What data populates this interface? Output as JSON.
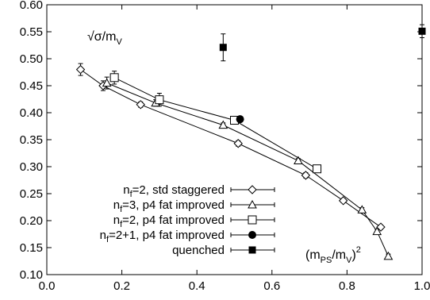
{
  "chart_data": {
    "type": "scatter",
    "title": "",
    "xlabel": "",
    "ylabel": "",
    "xlim": [
      0.0,
      1.0
    ],
    "ylim": [
      0.1,
      0.6
    ],
    "x_ticks": [
      "0.0",
      "0.2",
      "0.4",
      "0.6",
      "0.8",
      "1.0"
    ],
    "y_ticks": [
      "0.10",
      "0.15",
      "0.20",
      "0.25",
      "0.30",
      "0.35",
      "0.40",
      "0.45",
      "0.50",
      "0.55",
      "0.60"
    ],
    "x_tick_values": [
      0.0,
      0.2,
      0.4,
      0.6,
      0.8,
      1.0
    ],
    "y_tick_values": [
      0.1,
      0.15,
      0.2,
      0.25,
      0.3,
      0.35,
      0.4,
      0.45,
      0.5,
      0.55,
      0.6
    ],
    "grid": false,
    "legend_position": "bottom-left",
    "annotations": {
      "y_quantity": {
        "main": "√σ/m",
        "sub": "V"
      },
      "x_quantity": {
        "open": "(m",
        "sub1": "PS",
        "mid": "/m",
        "sub2": "V",
        "close": ")",
        "sup": "2"
      }
    },
    "series": [
      {
        "name": "n_f=2, std staggered",
        "legend": {
          "pre": "n",
          "sub": "f",
          "post": "=2, std staggered"
        },
        "marker": "diamond",
        "connected": true,
        "x": [
          0.09,
          0.15,
          0.25,
          0.51,
          0.69,
          0.79,
          0.89
        ],
        "y": [
          0.48,
          0.45,
          0.415,
          0.343,
          0.284,
          0.237,
          0.188
        ],
        "err": [
          0.011,
          0.009,
          0.005,
          0.005,
          0.005,
          0.004,
          0.004
        ]
      },
      {
        "name": "n_f=3, p4 fat improved",
        "legend": {
          "pre": "n",
          "sub": "f",
          "post": "=3, p4 fat improved"
        },
        "marker": "triangle",
        "connected": true,
        "x": [
          0.16,
          0.29,
          0.47,
          0.67,
          0.84,
          0.88,
          0.91
        ],
        "y": [
          0.455,
          0.418,
          0.377,
          0.311,
          0.22,
          0.18,
          0.134
        ],
        "err": [
          0.011,
          0.006,
          0.004,
          0.004,
          0.004,
          0.004,
          0.004
        ]
      },
      {
        "name": "n_f=2, p4 fat improved",
        "legend": {
          "pre": "n",
          "sub": "f",
          "post": "=2, p4 fat improved"
        },
        "marker": "square",
        "connected": true,
        "x": [
          0.18,
          0.3,
          0.5,
          0.72
        ],
        "y": [
          0.465,
          0.424,
          0.386,
          0.296
        ],
        "err": [
          0.012,
          0.012,
          0.006,
          0.006
        ]
      },
      {
        "name": "n_f=2+1, p4 fat improved",
        "legend": {
          "pre": "n",
          "sub": "f",
          "post": "=2+1, p4 fat improved"
        },
        "marker": "filled-circle",
        "connected": false,
        "x": [
          0.515
        ],
        "y": [
          0.388
        ],
        "err": [
          0.0
        ]
      },
      {
        "name": "quenched",
        "legend": {
          "pre": "",
          "sub": "",
          "post": "quenched"
        },
        "marker": "filled-square",
        "connected": false,
        "x": [
          0.47,
          1.0
        ],
        "y": [
          0.521,
          0.551
        ],
        "err": [
          0.025,
          0.012
        ]
      }
    ]
  }
}
